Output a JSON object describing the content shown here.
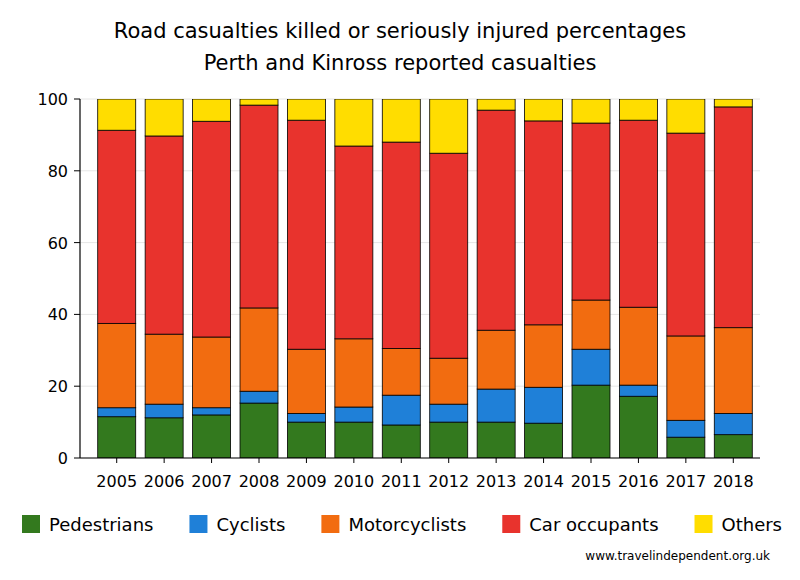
{
  "chart_data": {
    "type": "bar",
    "stacked": true,
    "title": "Road casualties killed or seriously injured percentages",
    "subtitle": "Perth and Kinross reported casualties",
    "annotations": [
      "www.travelindependent.org.uk"
    ],
    "categories": [
      "2005",
      "2006",
      "2007",
      "2008",
      "2009",
      "2010",
      "2011",
      "2012",
      "2013",
      "2014",
      "2015",
      "2016",
      "2017",
      "2018"
    ],
    "series": [
      {
        "name": "Pedestrians",
        "color": "#33791e",
        "values": [
          11.5,
          11.2,
          12,
          15.3,
          10,
          10,
          9.2,
          10,
          10,
          9.7,
          20.3,
          17.2,
          5.8,
          6.5
        ]
      },
      {
        "name": "Cyclists",
        "color": "#1f80d8",
        "values": [
          2.5,
          3.8,
          2,
          3.3,
          2.4,
          4.2,
          8.3,
          5,
          9.2,
          10,
          10,
          3.1,
          4.7,
          5.9
        ]
      },
      {
        "name": "Motorcyclists",
        "color": "#f26c10",
        "values": [
          23.5,
          19.5,
          19.7,
          23.2,
          17.9,
          19,
          13,
          12.8,
          16.4,
          17.4,
          13.7,
          21.7,
          23.5,
          23.9
        ]
      },
      {
        "name": "Car occupants",
        "color": "#e8332d",
        "values": [
          53.8,
          55.2,
          60.1,
          56.5,
          63.8,
          53.7,
          57.5,
          57.1,
          61.3,
          56.8,
          49.3,
          52.1,
          56.5,
          61.5
        ]
      },
      {
        "name": "Others",
        "color": "#ffdd00",
        "values": [
          8.7,
          10.3,
          6.2,
          1.7,
          5.9,
          13.1,
          12,
          15.1,
          3.1,
          6.1,
          6.7,
          5.9,
          9.5,
          2.2
        ]
      }
    ],
    "ylim": [
      0,
      100
    ],
    "yticks": [
      0,
      20,
      40,
      60,
      80,
      100
    ],
    "grid": true,
    "legend": "bottom"
  }
}
